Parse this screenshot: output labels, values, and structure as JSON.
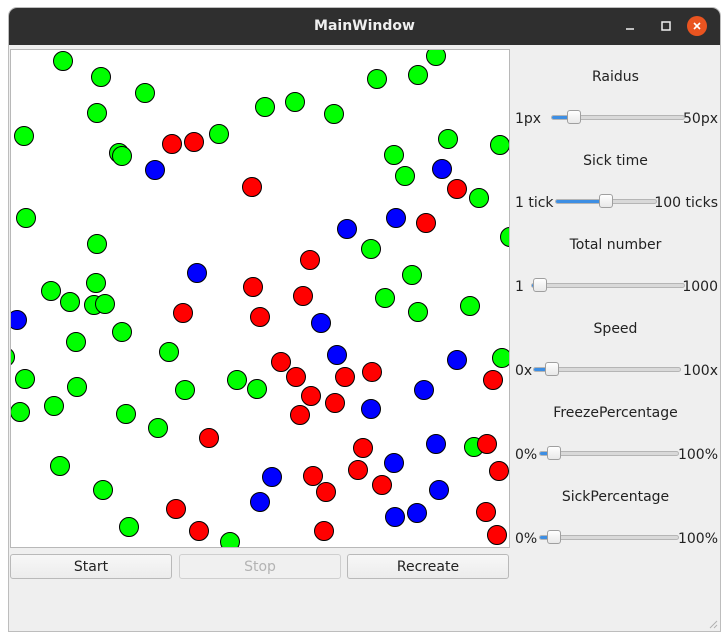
{
  "window": {
    "title": "MainWindow"
  },
  "controls": {
    "start": "Start",
    "stop": "Stop",
    "recreate": "Recreate"
  },
  "colors": {
    "healthy": "#00ff00",
    "sick": "#ff0000",
    "frozen": "#0000ff",
    "close": "#e95420",
    "slider_fill": "#3d8ee3"
  },
  "sliders": [
    {
      "id": "radius",
      "label": "Raidus",
      "min_label": "1px",
      "max_label": "50px",
      "value_fraction": 0.17
    },
    {
      "id": "sick-time",
      "label": "Sick time",
      "min_label": "1 tick",
      "max_label": "100 ticks",
      "value_fraction": 0.5
    },
    {
      "id": "total-number",
      "label": "Total number",
      "min_label": "1",
      "max_label": "1000",
      "value_fraction": 0.05
    },
    {
      "id": "speed",
      "label": "Speed",
      "min_label": "0x",
      "max_label": "100x",
      "value_fraction": 0.12
    },
    {
      "id": "freeze-percentage",
      "label": "FreezePercentage",
      "min_label": "0%",
      "max_label": "100%",
      "value_fraction": 0.1
    },
    {
      "id": "sick-percentage",
      "label": "SickPercentage",
      "min_label": "0%",
      "max_label": "100%",
      "value_fraction": 0.1
    }
  ]
}
